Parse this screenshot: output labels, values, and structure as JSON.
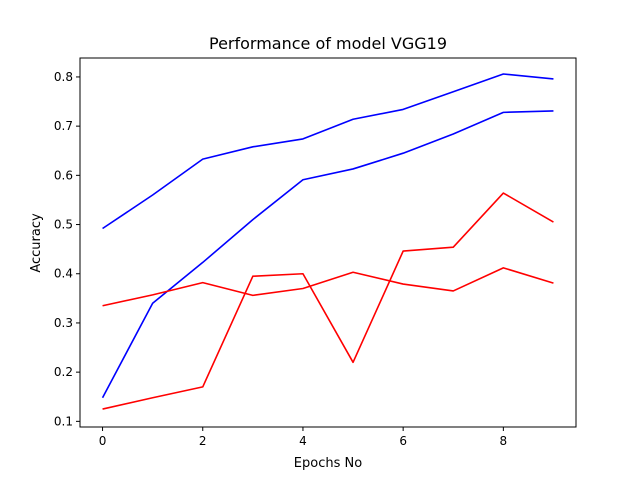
{
  "chart_data": {
    "type": "line",
    "title": "Performance of model VGG19",
    "xlabel": "Epochs No",
    "ylabel": "Accuracy",
    "x": [
      0,
      1,
      2,
      3,
      4,
      5,
      6,
      7,
      8,
      9
    ],
    "xlim": [
      -0.45,
      9.45
    ],
    "ylim": [
      0.0885,
      0.8385
    ],
    "xticks": [
      0,
      2,
      4,
      6,
      8
    ],
    "yticks": [
      0.1,
      0.2,
      0.3,
      0.4,
      0.5,
      0.6,
      0.7,
      0.8
    ],
    "grid": false,
    "legend": "none",
    "series": [
      {
        "color": "#0000ff",
        "values": [
          0.492,
          0.56,
          0.633,
          0.658,
          0.674,
          0.714,
          0.734,
          0.77,
          0.806,
          0.796
        ]
      },
      {
        "color": "#0000ff",
        "values": [
          0.148,
          0.34,
          0.423,
          0.51,
          0.591,
          0.613,
          0.645,
          0.684,
          0.728,
          0.731
        ]
      },
      {
        "color": "#ff0000",
        "values": [
          0.335,
          0.357,
          0.382,
          0.356,
          0.37,
          0.403,
          0.379,
          0.365,
          0.412,
          0.381
        ]
      },
      {
        "color": "#ff0000",
        "values": [
          0.125,
          0.148,
          0.17,
          0.395,
          0.4,
          0.22,
          0.446,
          0.454,
          0.564,
          0.505
        ]
      }
    ]
  }
}
